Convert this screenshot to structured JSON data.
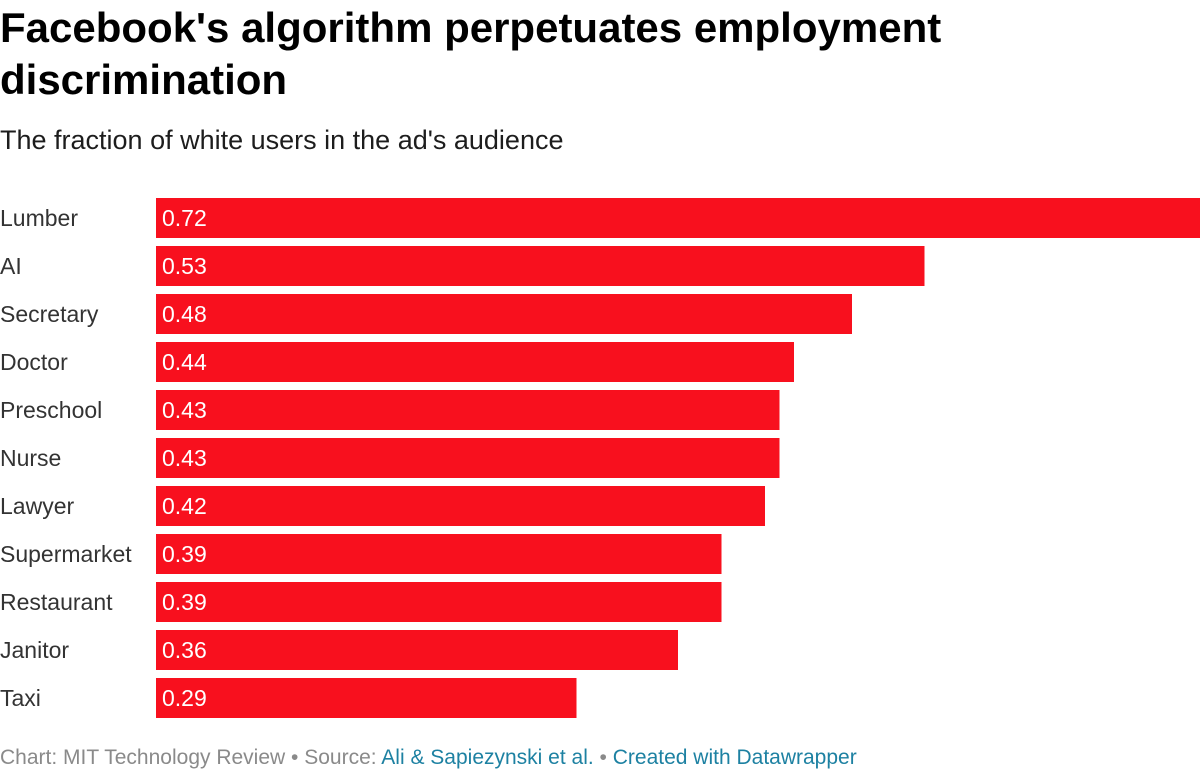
{
  "header": {
    "title": "Facebook's algorithm perpetuates employment discrimination",
    "subtitle": "The fraction of white users in the ad's audience"
  },
  "chart_data": {
    "type": "bar",
    "orientation": "horizontal",
    "categories": [
      "Lumber",
      "AI",
      "Secretary",
      "Doctor",
      "Preschool",
      "Nurse",
      "Lawyer",
      "Supermarket",
      "Restaurant",
      "Janitor",
      "Taxi"
    ],
    "values": [
      0.72,
      0.53,
      0.48,
      0.44,
      0.43,
      0.43,
      0.42,
      0.39,
      0.39,
      0.36,
      0.29
    ],
    "value_labels": [
      "0.72",
      "0.53",
      "0.48",
      "0.44",
      "0.43",
      "0.43",
      "0.42",
      "0.39",
      "0.39",
      "0.36",
      "0.29"
    ],
    "xlim": [
      0,
      0.72
    ],
    "bar_color": "#f8101e",
    "label_color": "#ffffff",
    "grid": false,
    "legend": "none"
  },
  "footer": {
    "chart_prefix": "Chart: MIT Technology Review",
    "separator": " • ",
    "source_prefix": "Source: ",
    "source_link": "Ali & Sapiezynski et al.",
    "created_with": "Created with Datawrapper"
  }
}
